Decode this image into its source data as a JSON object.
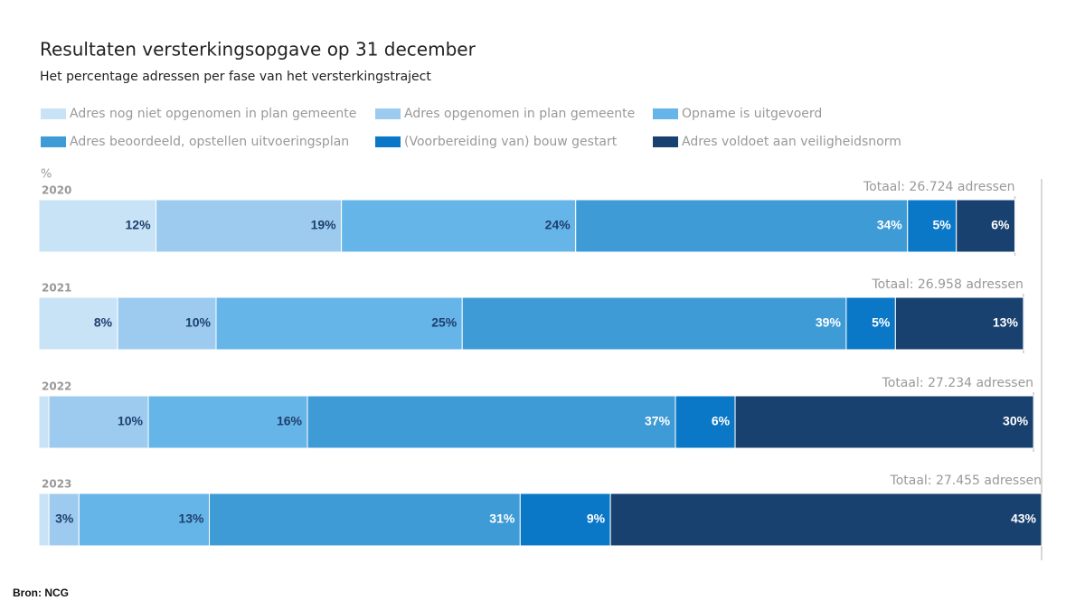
{
  "chart_data": {
    "type": "stacked-bar-horizontal",
    "title": "Resultaten versterkingsopgave op 31 december",
    "subtitle": "Het percentage adressen per fase van het versterkingstraject",
    "unit_label": "%",
    "source": "Bron: NCG",
    "categories": [
      "2020",
      "2021",
      "2022",
      "2023"
    ],
    "totals": [
      {
        "value": 26724,
        "label": "Totaal: 26.724 adressen"
      },
      {
        "value": 26958,
        "label": "Totaal: 26.958 adressen"
      },
      {
        "value": 27234,
        "label": "Totaal: 27.234 adressen"
      },
      {
        "value": 27455,
        "label": "Totaal: 27.455 adressen"
      }
    ],
    "xlim": [
      0,
      27455
    ],
    "series": [
      {
        "name": "Adres nog niet opgenomen in plan gemeente",
        "color": "#c9e3f6",
        "label_color": "#1d3f6e",
        "values": [
          12,
          8,
          1,
          1
        ],
        "value_labels": [
          "12%",
          "8%",
          null,
          null
        ]
      },
      {
        "name": "Adres opgenomen in plan gemeente",
        "color": "#9dcbf0",
        "label_color": "#1d3f6e",
        "values": [
          19,
          10,
          10,
          3
        ],
        "value_labels": [
          "19%",
          "10%",
          "10%",
          "3%"
        ]
      },
      {
        "name": "Opname is uitgevoerd",
        "color": "#66b5e8",
        "label_color": "#1d3f6e",
        "values": [
          24,
          25,
          16,
          13
        ],
        "value_labels": [
          "24%",
          "25%",
          "16%",
          "13%"
        ]
      },
      {
        "name": "Adres beoordeeld, opstellen uitvoeringsplan",
        "color": "#3f9bd6",
        "label_color": "#ffffff",
        "values": [
          34,
          39,
          37,
          31
        ],
        "value_labels": [
          "34%",
          "39%",
          "37%",
          "31%"
        ]
      },
      {
        "name": "(Voorbereiding van) bouw gestart",
        "color": "#0a78c6",
        "label_color": "#ffffff",
        "values": [
          5,
          5,
          6,
          9
        ],
        "value_labels": [
          "5%",
          "5%",
          "6%",
          "9%"
        ]
      },
      {
        "name": "Adres voldoet aan veiligheidsnorm",
        "color": "#18416f",
        "label_color": "#ffffff",
        "values": [
          6,
          13,
          30,
          43
        ],
        "value_labels": [
          "6%",
          "13%",
          "30%",
          "43%"
        ]
      }
    ]
  }
}
